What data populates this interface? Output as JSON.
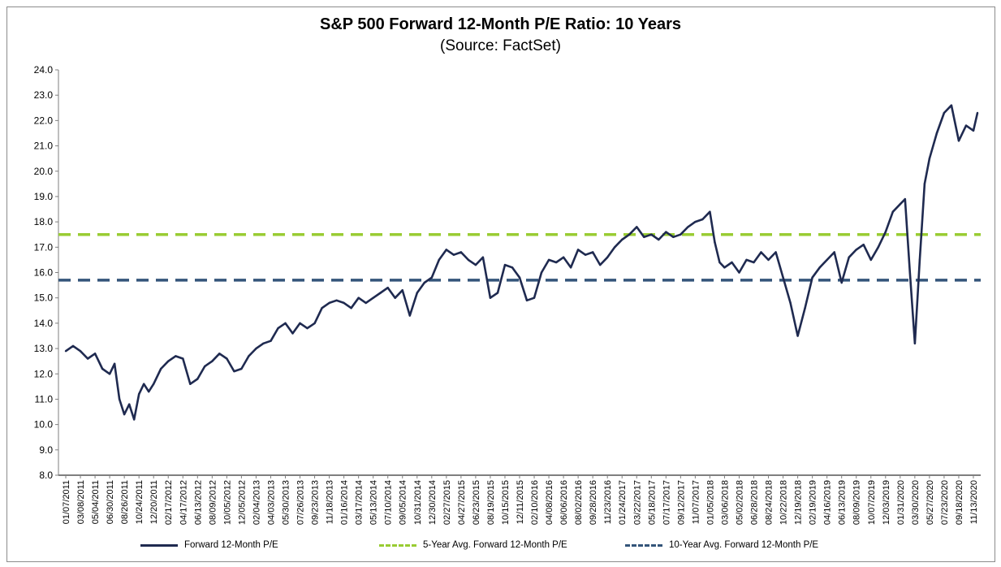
{
  "chart_data": {
    "type": "line",
    "title": "S&P 500 Forward 12-Month P/E Ratio: 10 Years",
    "subtitle": "(Source: FactSet)",
    "ylim": [
      8.0,
      24.0
    ],
    "y_ticks": [
      "24.0",
      "23.0",
      "22.0",
      "21.0",
      "20.0",
      "19.0",
      "18.0",
      "17.0",
      "16.0",
      "15.0",
      "14.0",
      "13.0",
      "12.0",
      "11.0",
      "10.0",
      "9.0",
      "8.0"
    ],
    "x_ticks": [
      "01/07/2011",
      "03/08/2011",
      "05/04/2011",
      "06/30/2011",
      "08/26/2011",
      "10/24/2011",
      "12/20/2011",
      "02/17/2012",
      "04/17/2012",
      "06/13/2012",
      "08/09/2012",
      "10/05/2012",
      "12/05/2012",
      "02/04/2013",
      "04/03/2013",
      "05/30/2013",
      "07/26/2013",
      "09/23/2013",
      "11/18/2013",
      "01/16/2014",
      "03/17/2014",
      "05/13/2014",
      "07/10/2014",
      "09/05/2014",
      "10/31/2014",
      "12/30/2014",
      "02/27/2015",
      "04/27/2015",
      "06/23/2015",
      "08/19/2015",
      "10/15/2015",
      "12/11/2015",
      "02/10/2016",
      "04/08/2016",
      "06/06/2016",
      "08/02/2016",
      "09/28/2016",
      "11/23/2016",
      "01/24/2017",
      "03/22/2017",
      "05/18/2017",
      "07/17/2017",
      "09/12/2017",
      "11/07/2017",
      "01/05/2018",
      "03/06/2018",
      "05/02/2018",
      "06/28/2018",
      "08/24/2018",
      "10/22/2018",
      "12/19/2018",
      "02/19/2019",
      "04/16/2019",
      "06/13/2019",
      "08/09/2019",
      "10/07/2019",
      "12/03/2019",
      "01/31/2020",
      "03/30/2020",
      "05/27/2020",
      "07/23/2020",
      "09/18/2020",
      "11/13/2020"
    ],
    "series": [
      {
        "name": "Forward 12-Month P/E",
        "color": "#1f2a50",
        "style": "solid",
        "x": [
          "01/07/2011",
          "02/2011",
          "03/08/2011",
          "04/2011",
          "05/04/2011",
          "06/2011",
          "06/30/2011",
          "07/2011",
          "08/2011",
          "08/26/2011",
          "09/2011",
          "10/2011",
          "10/24/2011",
          "11/2011",
          "12/2011",
          "12/20/2011",
          "01/2012",
          "02/17/2012",
          "03/2012",
          "04/17/2012",
          "05/2012",
          "06/13/2012",
          "07/2012",
          "08/09/2012",
          "09/2012",
          "10/05/2012",
          "11/2012",
          "12/05/2012",
          "01/2013",
          "02/04/2013",
          "03/2013",
          "04/03/2013",
          "05/2013",
          "05/30/2013",
          "06/2013",
          "07/26/2013",
          "08/2013",
          "09/23/2013",
          "10/2013",
          "11/18/2013",
          "12/2013",
          "01/16/2014",
          "02/2014",
          "03/17/2014",
          "04/2014",
          "05/13/2014",
          "06/2014",
          "07/10/2014",
          "08/2014",
          "09/05/2014",
          "10/2014",
          "10/31/2014",
          "12/2014",
          "12/30/2014",
          "02/2015",
          "02/27/2015",
          "03/2015",
          "04/27/2015",
          "05/2015",
          "06/23/2015",
          "07/2015",
          "08/19/2015",
          "09/2015",
          "10/15/2015",
          "11/2015",
          "12/11/2015",
          "01/2016",
          "02/10/2016",
          "03/2016",
          "04/08/2016",
          "05/2016",
          "06/06/2016",
          "07/2016",
          "08/02/2016",
          "09/2016",
          "09/28/2016",
          "11/2016",
          "11/23/2016",
          "12/2016",
          "01/24/2017",
          "02/2017",
          "03/22/2017",
          "04/2017",
          "05/18/2017",
          "06/2017",
          "07/17/2017",
          "08/2017",
          "09/12/2017",
          "10/2017",
          "11/07/2017",
          "12/2017",
          "01/05/2018",
          "01/2018",
          "02/2018",
          "03/06/2018",
          "04/2018",
          "05/02/2018",
          "06/2018",
          "06/28/2018",
          "07/2018",
          "08/24/2018",
          "09/2018",
          "10/22/2018",
          "11/2018",
          "12/19/2018",
          "01/2019",
          "02/19/2019",
          "03/2019",
          "04/16/2019",
          "05/2019",
          "06/13/2019",
          "07/2019",
          "08/09/2019",
          "09/2019",
          "10/07/2019",
          "11/2019",
          "12/03/2019",
          "01/2020",
          "01/31/2020",
          "02/2020",
          "03/2020",
          "03/30/2020",
          "04/2020",
          "05/2020",
          "05/27/2020",
          "06/2020",
          "07/23/2020",
          "08/2020",
          "09/18/2020",
          "10/2020",
          "11/13/2020",
          "12/2020"
        ],
        "values": [
          12.9,
          13.1,
          12.9,
          12.6,
          12.8,
          12.2,
          12.0,
          12.4,
          11.0,
          10.4,
          10.8,
          10.2,
          11.2,
          11.6,
          11.3,
          11.6,
          12.2,
          12.5,
          12.7,
          12.6,
          11.6,
          11.8,
          12.3,
          12.5,
          12.8,
          12.6,
          12.1,
          12.2,
          12.7,
          13.0,
          13.2,
          13.3,
          13.8,
          14.0,
          13.6,
          14.0,
          13.8,
          14.0,
          14.6,
          14.8,
          14.9,
          14.8,
          14.6,
          15.0,
          14.8,
          15.0,
          15.2,
          15.4,
          15.0,
          15.3,
          14.3,
          15.2,
          15.6,
          15.8,
          16.5,
          16.9,
          16.7,
          16.8,
          16.5,
          16.3,
          16.6,
          15.0,
          15.2,
          16.3,
          16.2,
          15.8,
          14.9,
          15.0,
          16.0,
          16.5,
          16.4,
          16.6,
          16.2,
          16.9,
          16.7,
          16.8,
          16.3,
          16.6,
          17.0,
          17.3,
          17.5,
          17.8,
          17.4,
          17.5,
          17.3,
          17.6,
          17.4,
          17.5,
          17.8,
          18.0,
          18.1,
          18.4,
          17.2,
          16.4,
          16.2,
          16.4,
          16.0,
          16.5,
          16.4,
          16.8,
          16.5,
          16.8,
          15.8,
          14.8,
          13.5,
          14.6,
          15.8,
          16.2,
          16.5,
          16.8,
          15.6,
          16.6,
          16.9,
          17.1,
          16.5,
          17.0,
          17.6,
          18.4,
          18.7,
          18.9,
          16.0,
          13.2,
          16.5,
          19.5,
          20.5,
          21.5,
          22.3,
          22.6,
          21.2,
          21.8,
          21.6,
          22.3
        ]
      },
      {
        "name": "5-Year Avg. Forward 12-Month P/E",
        "color": "#99cc33",
        "style": "dashed",
        "constant": 17.5
      },
      {
        "name": "10-Year Avg. Forward 12-Month P/E",
        "color": "#34557a",
        "style": "dashed",
        "constant": 15.7
      }
    ],
    "legend_placement": "bottom",
    "grid": false
  }
}
